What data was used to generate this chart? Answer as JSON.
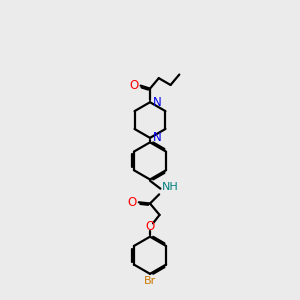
{
  "bg_color": "#ebebeb",
  "line_color": "#000000",
  "N_color": "#0000ee",
  "O_color": "#ff0000",
  "Br_color": "#cc7700",
  "NH_color": "#008080",
  "lw": 1.6,
  "figsize": [
    3.0,
    3.0
  ],
  "dpi": 100,
  "xlim": [
    0,
    10
  ],
  "ylim": [
    0,
    12
  ]
}
